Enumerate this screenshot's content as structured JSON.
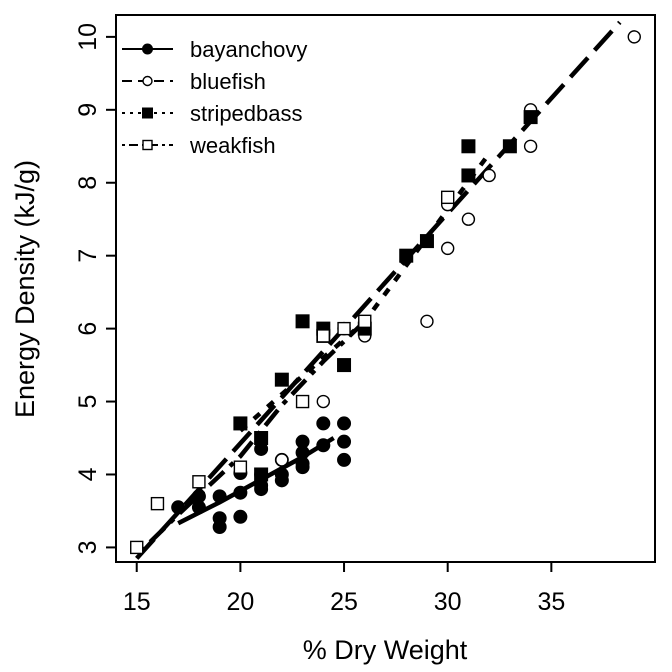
{
  "chart_data": {
    "type": "scatter",
    "title": "",
    "xlabel": "% Dry Weight",
    "ylabel": "Energy Density (kJ/g)",
    "xlim": [
      14,
      40
    ],
    "ylim": [
      2.8,
      10.3
    ],
    "x_ticks": [
      15,
      20,
      25,
      30,
      35
    ],
    "y_ticks": [
      3,
      4,
      5,
      6,
      7,
      8,
      9,
      10
    ],
    "grid": false,
    "legend_position": "top-left",
    "series": [
      {
        "name": "bayanchovy",
        "marker": "filled-circle",
        "line_style": "solid",
        "points": [
          [
            17,
            3.55
          ],
          [
            18,
            3.55
          ],
          [
            18,
            3.7
          ],
          [
            19,
            3.28
          ],
          [
            19,
            3.4
          ],
          [
            19,
            3.7
          ],
          [
            20,
            3.42
          ],
          [
            20,
            3.75
          ],
          [
            20,
            4.02
          ],
          [
            21,
            3.8
          ],
          [
            21,
            3.85
          ],
          [
            21,
            4.0
          ],
          [
            21,
            4.35
          ],
          [
            22,
            3.92
          ],
          [
            22,
            4.0
          ],
          [
            22,
            4.2
          ],
          [
            23,
            4.1
          ],
          [
            23,
            4.15
          ],
          [
            23,
            4.3
          ],
          [
            23,
            4.45
          ],
          [
            24,
            4.4
          ],
          [
            24,
            4.7
          ],
          [
            25,
            4.2
          ],
          [
            25,
            4.45
          ],
          [
            25,
            4.7
          ]
        ],
        "fit_line": [
          [
            17,
            3.33
          ],
          [
            19,
            3.62
          ],
          [
            21,
            3.93
          ],
          [
            23,
            4.24
          ],
          [
            24.5,
            4.5
          ]
        ]
      },
      {
        "name": "bluefish",
        "marker": "open-circle",
        "line_style": "dashed",
        "points": [
          [
            22,
            4.2
          ],
          [
            24,
            5.0
          ],
          [
            25,
            6.0
          ],
          [
            26,
            5.9
          ],
          [
            26,
            6.0
          ],
          [
            29,
            6.1
          ],
          [
            30,
            7.1
          ],
          [
            30,
            7.7
          ],
          [
            31,
            7.5
          ],
          [
            32,
            8.1
          ],
          [
            34,
            8.5
          ],
          [
            34,
            9.0
          ],
          [
            39,
            10.0
          ]
        ],
        "fit_line": [
          [
            15,
            2.85
          ],
          [
            38.3,
            10.2
          ]
        ]
      },
      {
        "name": "stripedbass",
        "marker": "filled-square",
        "line_style": "dotted",
        "points": [
          [
            20,
            4.7
          ],
          [
            21,
            4.5
          ],
          [
            21,
            4.0
          ],
          [
            22,
            5.3
          ],
          [
            23,
            6.1
          ],
          [
            24,
            6.0
          ],
          [
            24,
            5.9
          ],
          [
            25,
            5.5
          ],
          [
            26,
            6.0
          ],
          [
            28,
            7.0
          ],
          [
            29,
            7.2
          ],
          [
            31,
            8.5
          ],
          [
            31,
            8.1
          ],
          [
            33,
            8.5
          ],
          [
            34,
            8.9
          ]
        ],
        "fit_line": [
          [
            20,
            4.6
          ],
          [
            26,
            6.1
          ],
          [
            32,
            8.4
          ]
        ]
      },
      {
        "name": "weakfish",
        "marker": "open-square",
        "line_style": "dotdash",
        "points": [
          [
            15,
            3.0
          ],
          [
            16,
            3.6
          ],
          [
            18,
            3.9
          ],
          [
            20,
            4.1
          ],
          [
            23,
            5.0
          ],
          [
            24,
            5.9
          ],
          [
            25,
            6.0
          ],
          [
            26,
            6.1
          ],
          [
            30,
            7.8
          ]
        ],
        "fit_line": [
          [
            15.2,
            2.95
          ],
          [
            17,
            3.45
          ],
          [
            20,
            4.25
          ],
          [
            22,
            4.95
          ],
          [
            24,
            5.55
          ],
          [
            26,
            6.1
          ]
        ]
      }
    ]
  }
}
